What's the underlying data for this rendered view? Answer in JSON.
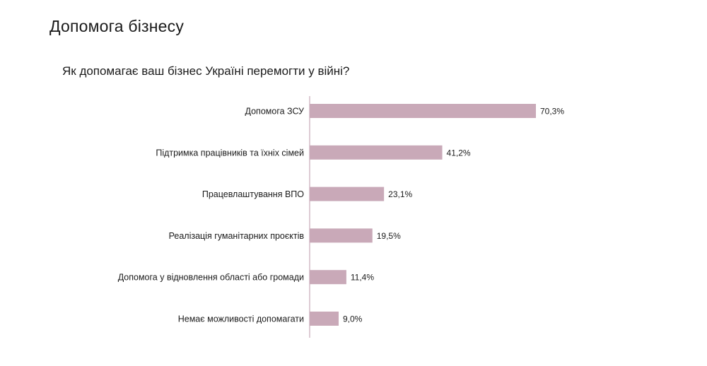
{
  "page_title": "Допомога бізнесу",
  "chart_data": {
    "type": "bar",
    "orientation": "horizontal",
    "title": "Як допомагає ваш бізнес Україні перемогти у війні?",
    "categories": [
      "Допомога ЗСУ",
      "Підтримка працівників та їхніх сімей",
      "Працевлаштування ВПО",
      "Реалізація гуманітарних проєктів",
      "Допомога у відновлення області або громади",
      "Немає можливості допомагати"
    ],
    "values": [
      70.3,
      41.2,
      23.1,
      19.5,
      11.4,
      9.0
    ],
    "value_labels": [
      "70,3%",
      "41,2%",
      "23,1%",
      "19,5%",
      "11,4%",
      "9,0%"
    ],
    "unit": "%",
    "xlim": [
      0,
      70.3
    ],
    "grid": false,
    "legend": "none",
    "bar_color": "#c9a9b8",
    "axis_color": "#c9a9b8"
  }
}
